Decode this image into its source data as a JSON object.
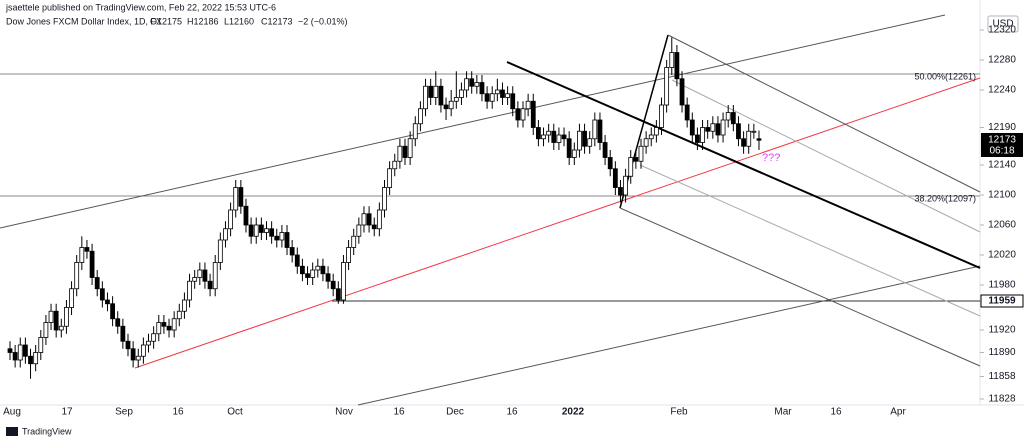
{
  "chart_data": {
    "type": "candlestick",
    "published": "jsaettele published on TradingView.com, Feb 22, 2022 15:53 UTC-6",
    "symbol": "Dow Jones FXCM Dollar Index, 1D, FX",
    "header_fields": [
      "O12175",
      "H12186",
      "L12160",
      "C12173",
      "−2 (−0.01%)"
    ],
    "currency": "USD",
    "countdown": "06:18",
    "level_label": "11959",
    "annotations": [
      "50.00%(12261)",
      "38.20%(12097)",
      "???"
    ],
    "brand": "TradingView",
    "xticks": [
      "Aug",
      "17",
      "Sep",
      "16",
      "Oct",
      "Nov",
      "16",
      "Dec",
      "16",
      "2022",
      "Feb",
      "Mar",
      "16",
      "Apr"
    ],
    "ylim": [
      11820,
      12360
    ],
    "yticks": [
      12320,
      12280,
      12240,
      12190,
      12140,
      12100,
      12060,
      12020,
      11980,
      11920,
      11890,
      11858,
      11828
    ],
    "up_color": "#ffffff",
    "down_color": "#000000",
    "open": [
      11895,
      11890,
      11880,
      11900,
      11885,
      11875,
      11890,
      11910,
      11930,
      11945,
      11920,
      11925,
      11950,
      11975,
      12010,
      12030,
      12025,
      11990,
      11975,
      11960,
      11955,
      11935,
      11925,
      11905,
      11895,
      11880,
      11885,
      11900,
      11905,
      11915,
      11930,
      11925,
      11920,
      11935,
      11945,
      11960,
      11985,
      11990,
      12000,
      11985,
      11975,
      12010,
      12040,
      12055,
      12080,
      12110,
      12085,
      12060,
      12045,
      12060,
      12050,
      12055,
      12045,
      12040,
      12050,
      12030,
      12020,
      12005,
      11995,
      11990,
      12000,
      12005,
      11995,
      11985,
      11975,
      11960,
      12010,
      12030,
      12045,
      12060,
      12075,
      12060,
      12055,
      12080,
      12110,
      12135,
      12145,
      12165,
      12150,
      12175,
      12195,
      12215,
      12245,
      12230,
      12245,
      12220,
      12215,
      12225,
      12230,
      12240,
      12255,
      12245,
      12250,
      12235,
      12225,
      12235,
      12240,
      12230,
      12235,
      12215,
      12200,
      12215,
      12225,
      12190,
      12175,
      12180,
      12185,
      12170,
      12180,
      12175,
      12150,
      12160,
      12185,
      12165,
      12175,
      12200,
      12170,
      12150,
      12135,
      12110,
      12100,
      12125,
      12150,
      12145,
      12165,
      12175,
      12180,
      12190,
      12220,
      12270,
      12290,
      12255,
      12220,
      12200,
      12180,
      12170,
      12190,
      12185,
      12195,
      12180,
      12200,
      12210,
      12195,
      12175,
      12165,
      12185,
      12175
    ],
    "high": [
      11905,
      11900,
      11910,
      11910,
      11895,
      11900,
      11920,
      11940,
      11955,
      11955,
      11935,
      11960,
      11985,
      12020,
      12045,
      12040,
      12035,
      12000,
      11985,
      11970,
      11965,
      11945,
      11935,
      11915,
      11905,
      11895,
      11910,
      11915,
      11925,
      11940,
      11940,
      11935,
      11945,
      11955,
      11970,
      11995,
      12000,
      12010,
      12010,
      11995,
      12020,
      12050,
      12065,
      12090,
      12120,
      12120,
      12095,
      12070,
      12070,
      12070,
      12065,
      12065,
      12055,
      12060,
      12060,
      12040,
      12030,
      12015,
      12005,
      12010,
      12015,
      12015,
      12005,
      11995,
      11985,
      12020,
      12040,
      12055,
      12070,
      12085,
      12085,
      12070,
      12090,
      12120,
      12145,
      12155,
      12175,
      12175,
      12185,
      12205,
      12225,
      12255,
      12255,
      12265,
      12255,
      12230,
      12240,
      12265,
      12250,
      12265,
      12265,
      12260,
      12260,
      12245,
      12245,
      12255,
      12250,
      12245,
      12245,
      12225,
      12225,
      12235,
      12235,
      12200,
      12190,
      12195,
      12195,
      12190,
      12190,
      12185,
      12170,
      12195,
      12195,
      12185,
      12210,
      12210,
      12180,
      12160,
      12145,
      12120,
      12135,
      12160,
      12160,
      12175,
      12185,
      12190,
      12200,
      12230,
      12280,
      12310,
      12300,
      12265,
      12230,
      12210,
      12190,
      12200,
      12200,
      12205,
      12205,
      12210,
      12220,
      12220,
      12205,
      12185,
      12195,
      12195,
      12186
    ],
    "low": [
      11880,
      11870,
      11870,
      11875,
      11855,
      11865,
      11880,
      11900,
      11920,
      11910,
      11910,
      11915,
      11940,
      11965,
      12000,
      12015,
      11980,
      11965,
      11950,
      11945,
      11925,
      11915,
      11895,
      11885,
      11870,
      11870,
      11875,
      11890,
      11895,
      11905,
      11915,
      11910,
      11910,
      11925,
      11935,
      11950,
      11975,
      11980,
      11975,
      11965,
      11965,
      12000,
      12030,
      12045,
      12070,
      12075,
      12050,
      12035,
      12035,
      12040,
      12040,
      12035,
      12030,
      12030,
      12020,
      12010,
      11995,
      11985,
      11980,
      11980,
      11990,
      11985,
      11975,
      11965,
      11955,
      11955,
      12000,
      12020,
      12035,
      12050,
      12050,
      12045,
      12045,
      12070,
      12100,
      12125,
      12135,
      12140,
      12140,
      12165,
      12185,
      12205,
      12220,
      12220,
      12210,
      12200,
      12205,
      12215,
      12220,
      12230,
      12235,
      12235,
      12225,
      12215,
      12215,
      12225,
      12220,
      12220,
      12205,
      12190,
      12190,
      12205,
      12180,
      12165,
      12165,
      12170,
      12160,
      12160,
      12165,
      12140,
      12140,
      12150,
      12155,
      12155,
      12165,
      12160,
      12140,
      12125,
      12100,
      12090,
      12090,
      12115,
      12135,
      12135,
      12155,
      12165,
      12170,
      12180,
      12210,
      12260,
      12245,
      12210,
      12190,
      12170,
      12160,
      12160,
      12175,
      12175,
      12170,
      12170,
      12190,
      12185,
      12165,
      12155,
      12155,
      12175,
      12160
    ],
    "close": [
      11890,
      11880,
      11900,
      11885,
      11875,
      11890,
      11910,
      11930,
      11945,
      11920,
      11925,
      11950,
      11975,
      12010,
      12030,
      12025,
      11990,
      11975,
      11960,
      11955,
      11935,
      11925,
      11905,
      11895,
      11880,
      11885,
      11900,
      11905,
      11915,
      11930,
      11925,
      11920,
      11935,
      11945,
      11960,
      11985,
      11990,
      12000,
      11985,
      11975,
      12010,
      12040,
      12055,
      12080,
      12110,
      12085,
      12060,
      12045,
      12060,
      12050,
      12055,
      12045,
      12040,
      12050,
      12030,
      12020,
      12005,
      11995,
      11990,
      12000,
      12005,
      11995,
      11985,
      11975,
      11960,
      12010,
      12030,
      12045,
      12060,
      12075,
      12060,
      12055,
      12080,
      12110,
      12135,
      12145,
      12165,
      12150,
      12175,
      12195,
      12215,
      12245,
      12230,
      12245,
      12220,
      12215,
      12225,
      12230,
      12240,
      12255,
      12245,
      12250,
      12235,
      12225,
      12235,
      12240,
      12230,
      12235,
      12215,
      12200,
      12215,
      12225,
      12190,
      12175,
      12180,
      12185,
      12170,
      12180,
      12175,
      12150,
      12160,
      12185,
      12165,
      12175,
      12200,
      12170,
      12150,
      12135,
      12110,
      12100,
      12125,
      12150,
      12145,
      12165,
      12175,
      12180,
      12190,
      12220,
      12270,
      12290,
      12255,
      12220,
      12200,
      12180,
      12170,
      12190,
      12185,
      12195,
      12180,
      12200,
      12210,
      12195,
      12175,
      12165,
      12185,
      12185,
      12173
    ]
  }
}
